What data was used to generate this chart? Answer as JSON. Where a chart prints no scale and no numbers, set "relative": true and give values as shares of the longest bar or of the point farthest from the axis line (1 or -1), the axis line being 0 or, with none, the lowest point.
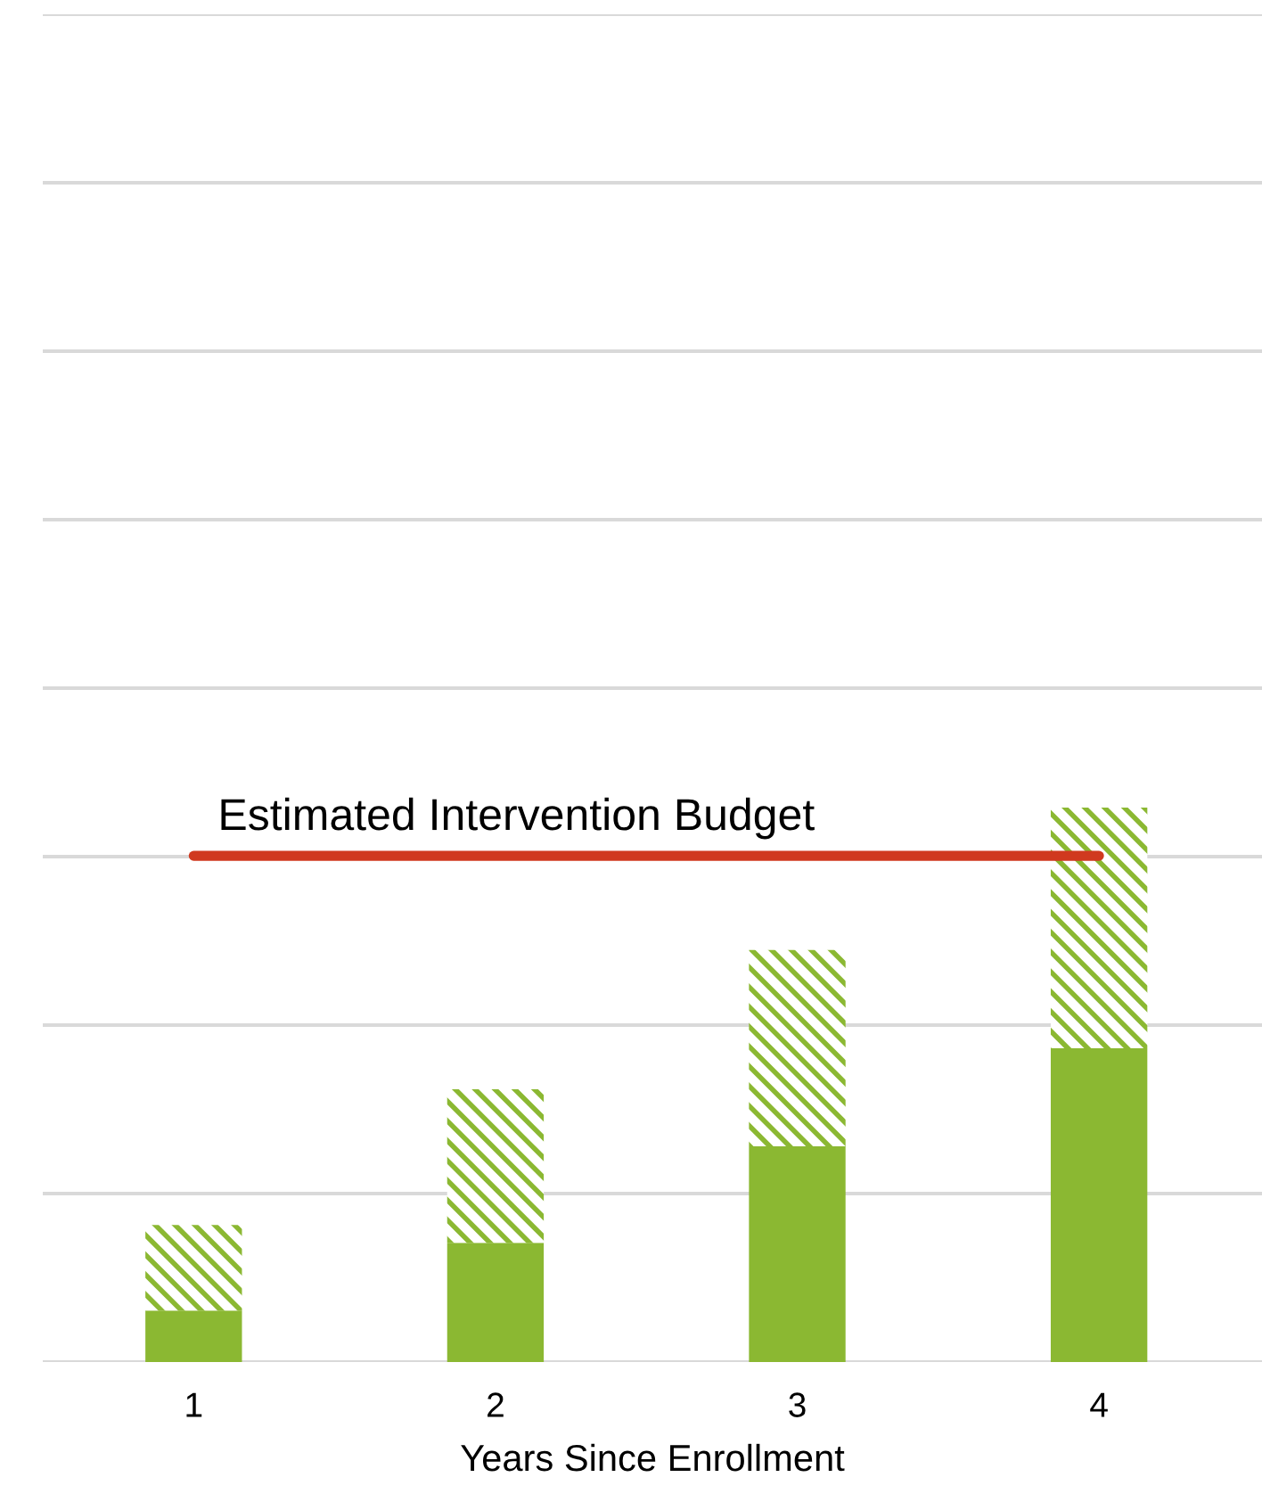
{
  "chart_data": {
    "type": "bar",
    "stacked": true,
    "relative": true,
    "xlabel": "Years Since Enrollment",
    "categories": [
      "1",
      "2",
      "3",
      "4"
    ],
    "series": [
      {
        "color": "#8bb832",
        "values": [
          0.093,
          0.215,
          0.389,
          0.566
        ]
      },
      {
        "color": "#8bb832",
        "values": [
          0.154,
          0.277,
          0.354,
          0.434
        ]
      }
    ],
    "tick_labels": "x",
    "grid": "y",
    "ref_lines": [
      {
        "axis": "y",
        "value": 0.913,
        "label": "Estimated Intervention Budget",
        "color": "#d0391f"
      }
    ]
  }
}
